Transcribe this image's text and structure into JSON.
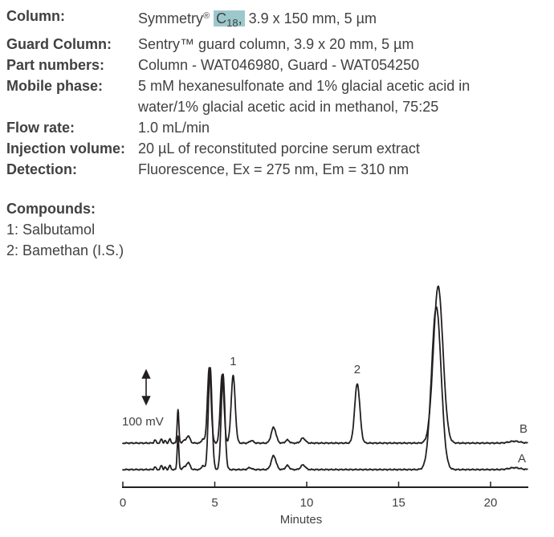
{
  "spec": {
    "rows": [
      {
        "label": "Column:",
        "value": ""
      },
      {
        "label": "Guard Column:",
        "value": "Sentry™ guard column, 3.9 x 20 mm, 5 µm"
      },
      {
        "label": "Part numbers:",
        "value": "Column - WAT046980, Guard - WAT054250"
      },
      {
        "label": "Mobile phase:",
        "value": "5 mM hexanesulfonate and 1% glacial acetic acid in"
      },
      {
        "label": "",
        "value": "water/1% glacial acetic acid in methanol, 75:25"
      },
      {
        "label": "Flow rate:",
        "value": "1.0 mL/min"
      },
      {
        "label": "Injection volume:",
        "value": "20 µL of reconstituted porcine serum extract"
      },
      {
        "label": "Detection:",
        "value": "Fluorescence, Ex = 275 nm, Em = 310 nm"
      }
    ],
    "column_value": {
      "brand": "Symmetry",
      "reg_mark": "®",
      "highlight_main": "C",
      "highlight_sub": "18",
      "highlight_comma": ",",
      "rest": " 3.9 x 150 mm, 5 µm",
      "highlight_color": "#9cc8cc"
    }
  },
  "compounds": {
    "heading": "Compounds:",
    "items": [
      "1: Salbutamol",
      "2: Bamethan (I.S.)"
    ]
  },
  "chart_data": {
    "type": "line",
    "title": "",
    "xlabel": "Minutes",
    "ylabel": "",
    "x_range": [
      0,
      22
    ],
    "x_ticks": [
      0,
      5,
      10,
      15,
      20
    ],
    "grid": false,
    "scale_bar_label": "100 mV",
    "scale_bar_mv": 100,
    "line_color": "#231f20",
    "peak_labels": [
      {
        "label": "1",
        "retention_min": 6.0
      },
      {
        "label": "2",
        "retention_min": 12.75
      }
    ],
    "series": [
      {
        "name": "B",
        "y_offset_mv": 85,
        "peaks": [
          {
            "retention_min": 1.75,
            "height_mv": 10,
            "width_sigma_min": 0.05
          },
          {
            "retention_min": 2.1,
            "height_mv": 13,
            "width_sigma_min": 0.05
          },
          {
            "retention_min": 2.3,
            "height_mv": 8,
            "width_sigma_min": 0.04
          },
          {
            "retention_min": 2.55,
            "height_mv": 13,
            "width_sigma_min": 0.05
          },
          {
            "retention_min": 3.0,
            "height_mv": 108,
            "width_sigma_min": 0.045
          },
          {
            "retention_min": 3.3,
            "height_mv": 8,
            "width_sigma_min": 0.06
          },
          {
            "retention_min": 3.55,
            "height_mv": 23,
            "width_sigma_min": 0.1
          },
          {
            "retention_min": 4.35,
            "height_mv": 13,
            "width_sigma_min": 0.07
          },
          {
            "retention_min": 4.7,
            "height_mv": 240,
            "width_sigma_min": 0.1
          },
          {
            "retention_min": 5.4,
            "height_mv": 220,
            "width_sigma_min": 0.1
          },
          {
            "retention_min": 6.0,
            "height_mv": 215,
            "width_sigma_min": 0.11
          },
          {
            "retention_min": 7.0,
            "height_mv": 8,
            "width_sigma_min": 0.1
          },
          {
            "retention_min": 8.2,
            "height_mv": 50,
            "width_sigma_min": 0.13
          },
          {
            "retention_min": 8.95,
            "height_mv": 10,
            "width_sigma_min": 0.1
          },
          {
            "retention_min": 9.8,
            "height_mv": 16,
            "width_sigma_min": 0.12
          },
          {
            "retention_min": 12.75,
            "height_mv": 190,
            "width_sigma_min": 0.14
          },
          {
            "retention_min": 17.15,
            "height_mv": 500,
            "width_sigma_min": 0.26
          },
          {
            "retention_min": 21.3,
            "height_mv": 6,
            "width_sigma_min": 0.3
          }
        ]
      },
      {
        "name": "A",
        "y_offset_mv": 0,
        "peaks": [
          {
            "retention_min": 1.75,
            "height_mv": 8,
            "width_sigma_min": 0.05
          },
          {
            "retention_min": 2.1,
            "height_mv": 13,
            "width_sigma_min": 0.05
          },
          {
            "retention_min": 2.3,
            "height_mv": 8,
            "width_sigma_min": 0.04
          },
          {
            "retention_min": 2.55,
            "height_mv": 13,
            "width_sigma_min": 0.05
          },
          {
            "retention_min": 3.0,
            "height_mv": 108,
            "width_sigma_min": 0.045
          },
          {
            "retention_min": 3.3,
            "height_mv": 8,
            "width_sigma_min": 0.06
          },
          {
            "retention_min": 3.55,
            "height_mv": 23,
            "width_sigma_min": 0.1
          },
          {
            "retention_min": 4.35,
            "height_mv": 13,
            "width_sigma_min": 0.07
          },
          {
            "retention_min": 4.75,
            "height_mv": 326,
            "width_sigma_min": 0.1
          },
          {
            "retention_min": 5.45,
            "height_mv": 305,
            "width_sigma_min": 0.1
          },
          {
            "retention_min": 6.9,
            "height_mv": 6,
            "width_sigma_min": 0.1
          },
          {
            "retention_min": 8.2,
            "height_mv": 44,
            "width_sigma_min": 0.13
          },
          {
            "retention_min": 8.95,
            "height_mv": 13,
            "width_sigma_min": 0.1
          },
          {
            "retention_min": 9.8,
            "height_mv": 15,
            "width_sigma_min": 0.12
          },
          {
            "retention_min": 17.05,
            "height_mv": 520,
            "width_sigma_min": 0.26
          },
          {
            "retention_min": 21.3,
            "height_mv": 6,
            "width_sigma_min": 0.3
          }
        ]
      }
    ]
  }
}
